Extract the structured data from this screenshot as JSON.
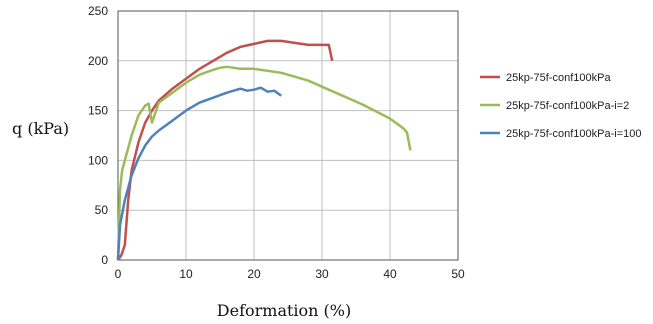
{
  "chart_data": {
    "type": "line",
    "title": "",
    "xlabel": "Deformation (%)",
    "ylabel": "q (kPa)",
    "xlim": [
      0,
      50
    ],
    "ylim": [
      0,
      250
    ],
    "x_ticks": [
      0,
      10,
      20,
      30,
      40,
      50
    ],
    "y_ticks": [
      0,
      50,
      100,
      150,
      200,
      250
    ],
    "grid": true,
    "legend_position": "right",
    "series": [
      {
        "name": "25kp-75f-conf100kPa",
        "color": "#c0504d",
        "x": [
          0,
          0.5,
          1,
          1.5,
          2,
          3,
          4,
          5,
          6,
          8,
          10,
          12,
          14,
          16,
          18,
          20,
          22,
          24,
          26,
          28,
          30,
          31,
          31.5
        ],
        "y": [
          0,
          5,
          15,
          60,
          90,
          118,
          138,
          150,
          160,
          172,
          182,
          192,
          200,
          208,
          214,
          217,
          220,
          220,
          218,
          216,
          216,
          216,
          200
        ]
      },
      {
        "name": "25kp-75f-conf100kPa-i=2",
        "color": "#9bbb59",
        "x": [
          0,
          0.3,
          0.6,
          1,
          2,
          3,
          4,
          4.5,
          5,
          6,
          8,
          10,
          12,
          14,
          15,
          16,
          18,
          20,
          22,
          24,
          26,
          28,
          30,
          32,
          34,
          36,
          38,
          40,
          41,
          42,
          42.5,
          43
        ],
        "y": [
          0,
          70,
          90,
          100,
          125,
          145,
          155,
          157,
          138,
          158,
          168,
          178,
          186,
          191,
          193,
          194,
          192,
          192,
          190,
          188,
          184,
          180,
          174,
          168,
          162,
          156,
          149,
          142,
          137,
          132,
          128,
          110
        ]
      },
      {
        "name": "25kp-75f-conf100kPa-i=100",
        "color": "#4f81bd",
        "x": [
          0,
          0.3,
          1,
          2,
          3,
          4,
          5,
          6,
          8,
          10,
          12,
          14,
          16,
          18,
          19,
          20,
          21,
          22,
          23,
          24
        ],
        "y": [
          0,
          35,
          60,
          85,
          102,
          115,
          124,
          130,
          140,
          150,
          158,
          163,
          168,
          172,
          170,
          171,
          173,
          169,
          170,
          165
        ]
      }
    ]
  }
}
